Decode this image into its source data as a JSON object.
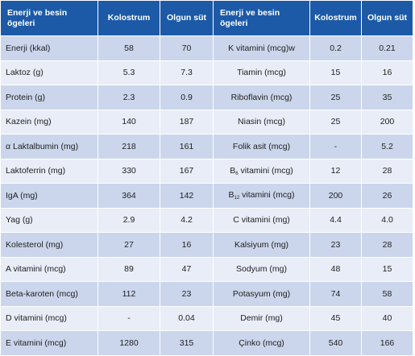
{
  "headers": {
    "nutrient_line1": "Enerji ve besin",
    "nutrient_line2": "ögeleri",
    "colostrum": "Kolostrum",
    "mature_milk": "Olgun süt"
  },
  "left_rows": [
    {
      "name": "Enerji (kkal)",
      "kolostrum": "58",
      "olgun": "70"
    },
    {
      "name": "Laktoz (g)",
      "kolostrum": "5.3",
      "olgun": "7.3"
    },
    {
      "name": "Protein (g)",
      "kolostrum": "2.3",
      "olgun": "0.9"
    },
    {
      "name": "Kazein (mg)",
      "kolostrum": "140",
      "olgun": "187"
    },
    {
      "name": "α Laktalbumin (mg)",
      "kolostrum": "218",
      "olgun": "161"
    },
    {
      "name": "Laktoferrin (mg)",
      "kolostrum": "330",
      "olgun": "167"
    },
    {
      "name": "IgA (mg)",
      "kolostrum": "364",
      "olgun": "142"
    },
    {
      "name": "Yag (g)",
      "kolostrum": "2.9",
      "olgun": "4.2"
    },
    {
      "name": "Kolesterol (mg)",
      "kolostrum": "27",
      "olgun": "16"
    },
    {
      "name": "A vitamini (mcg)",
      "kolostrum": "89",
      "olgun": "47"
    },
    {
      "name": "Beta-karoten (mcg)",
      "kolostrum": "112",
      "olgun": "23"
    },
    {
      "name": "D vitamini (mcg)",
      "kolostrum": "-",
      "olgun": "0.04"
    },
    {
      "name": "E vitamini (mcg)",
      "kolostrum": "1280",
      "olgun": "315"
    }
  ],
  "right_rows": [
    {
      "name": "K vitamini (mcg)w",
      "name_sub": "",
      "name_rest": "",
      "kolostrum": "0.2",
      "olgun": "0.21"
    },
    {
      "name": "Tiamin (mcg)",
      "name_sub": "",
      "name_rest": "",
      "kolostrum": "15",
      "olgun": "16"
    },
    {
      "name": "Riboflavin (mcg)",
      "name_sub": "",
      "name_rest": "",
      "kolostrum": "25",
      "olgun": "35"
    },
    {
      "name": "Niasin (mcg)",
      "name_sub": "",
      "name_rest": "",
      "kolostrum": "25",
      "olgun": "200"
    },
    {
      "name": "Folik asit (mcg)",
      "name_sub": "",
      "name_rest": "",
      "kolostrum": "-",
      "olgun": "5.2"
    },
    {
      "name": "B",
      "name_sub": "6",
      "name_rest": " vitamini (mcg)",
      "kolostrum": "12",
      "olgun": "28"
    },
    {
      "name": "B",
      "name_sub": "12",
      "name_rest": " vitamini (mcg)",
      "kolostrum": "200",
      "olgun": "26"
    },
    {
      "name": "C vitamini (mg)",
      "name_sub": "",
      "name_rest": "",
      "kolostrum": "4.4",
      "olgun": "4.0"
    },
    {
      "name": "Kalsiyum (mg)",
      "name_sub": "",
      "name_rest": "",
      "kolostrum": "23",
      "olgun": "28"
    },
    {
      "name": "Sodyum (mg)",
      "name_sub": "",
      "name_rest": "",
      "kolostrum": "48",
      "olgun": "15"
    },
    {
      "name": "Potasyum (mg)",
      "name_sub": "",
      "name_rest": "",
      "kolostrum": "74",
      "olgun": "58"
    },
    {
      "name": "Demir (mg)",
      "name_sub": "",
      "name_rest": "",
      "kolostrum": "45",
      "olgun": "40"
    },
    {
      "name": "Çinko (mcg)",
      "name_sub": "",
      "name_rest": "",
      "kolostrum": "540",
      "olgun": "166"
    }
  ]
}
